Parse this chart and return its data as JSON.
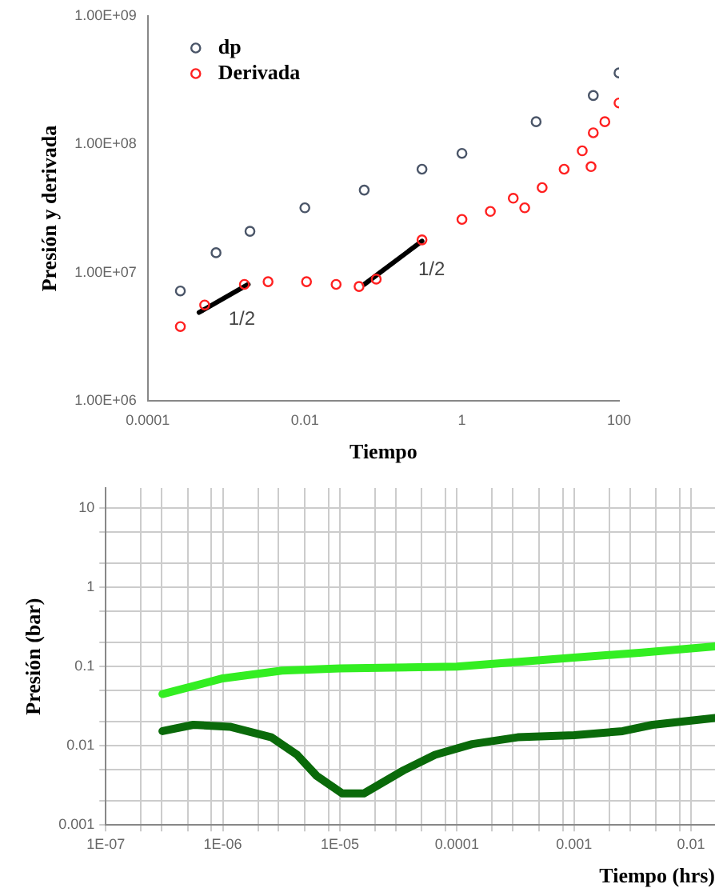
{
  "chart_data": [
    {
      "type": "scatter",
      "xlabel": "Tiempo",
      "ylabel": "Presión y derivada",
      "log": "xy",
      "grid": false,
      "legend": "top left",
      "xlim": [
        0.0001,
        100
      ],
      "xticks": [
        0.0001,
        0.01,
        1,
        100
      ],
      "ylim": [
        1000000,
        1000000000
      ],
      "yticks": [
        {
          "value": 1000000,
          "label": "1.00E+06"
        },
        {
          "value": 10000000,
          "label": "1.00E+07"
        },
        {
          "value": 100000000,
          "label": "1.00E+08"
        },
        {
          "value": 1000000000,
          "label": "1.00E+09"
        }
      ],
      "series": [
        {
          "name": "dp",
          "color": "#4a5568",
          "marker": "circle",
          "x": [
            0.00026,
            0.00074,
            0.002,
            0.01,
            0.057,
            0.31,
            1,
            8.8,
            47,
            100
          ],
          "values": [
            7200000,
            14300000,
            21000000,
            32000000,
            44000000,
            64000000,
            85000000,
            150000000,
            240000000,
            360000000
          ]
        },
        {
          "name": "Derivada",
          "color": "#ff2020",
          "marker": "circle",
          "x": [
            0.00026,
            0.00053,
            0.0017,
            0.0034,
            0.0105,
            0.025,
            0.049,
            0.081,
            0.31,
            1,
            2.3,
            4.5,
            6.3,
            10.5,
            20,
            34,
            44,
            47,
            66,
            100
          ],
          "values": [
            3800000,
            5600000,
            8100000,
            8500000,
            8500000,
            8100000,
            7800000,
            8900000,
            18000000,
            26000000,
            30000000,
            38000000,
            32000000,
            46000000,
            64000000,
            89000000,
            67000000,
            123000000,
            150000000,
            210000000
          ]
        },
        {
          "type": "line",
          "color": "#000000",
          "marker": "none",
          "x": [
            0.00045,
            0.0019
          ],
          "values": [
            4900000,
            8100000
          ]
        },
        {
          "type": "line",
          "color": "#000000",
          "marker": "none",
          "x": [
            0.057,
            0.31
          ],
          "values": [
            8100000,
            17600000
          ]
        }
      ],
      "annotations": [
        "1/2",
        "1/2"
      ]
    },
    {
      "type": "line",
      "xlabel": "Tiempo (hrs)",
      "ylabel": "Presión (bar)",
      "log": "xy",
      "grid": true,
      "xlim": [
        1e-07,
        0.016
      ],
      "xticks": [
        {
          "value": 1e-07,
          "label": "1E-07"
        },
        {
          "value": 2e-07,
          "label": null
        },
        {
          "value": 3e-07,
          "label": null
        },
        {
          "value": 5e-07,
          "label": null
        },
        {
          "value": 8e-07,
          "label": null
        },
        {
          "value": 1e-06,
          "label": "1E-06"
        },
        {
          "value": 2e-06,
          "label": null
        },
        {
          "value": 3e-06,
          "label": null
        },
        {
          "value": 5e-06,
          "label": null
        },
        {
          "value": 8e-06,
          "label": null
        },
        {
          "value": 1e-05,
          "label": "1E-05"
        },
        {
          "value": 2e-05,
          "label": null
        },
        {
          "value": 3e-05,
          "label": null
        },
        {
          "value": 5e-05,
          "label": null
        },
        {
          "value": 8e-05,
          "label": null
        },
        {
          "value": 0.0001,
          "label": "0.0001"
        },
        {
          "value": 0.0002,
          "label": null
        },
        {
          "value": 0.0003,
          "label": null
        },
        {
          "value": 0.0005,
          "label": null
        },
        {
          "value": 0.0008,
          "label": null
        },
        {
          "value": 0.001,
          "label": "0.001"
        },
        {
          "value": 0.002,
          "label": null
        },
        {
          "value": 0.003,
          "label": null
        },
        {
          "value": 0.005,
          "label": null
        },
        {
          "value": 0.008,
          "label": null
        },
        {
          "value": 0.01,
          "label": "0.01"
        }
      ],
      "ylim": [
        0.001,
        18
      ],
      "yticks": [
        {
          "value": 0.001,
          "label": "0.001"
        },
        {
          "value": 0.002,
          "label": null
        },
        {
          "value": 0.005,
          "label": null
        },
        {
          "value": 0.01,
          "label": "0.01"
        },
        {
          "value": 0.02,
          "label": null
        },
        {
          "value": 0.05,
          "label": null
        },
        {
          "value": 0.1,
          "label": "0.1"
        },
        {
          "value": 0.2,
          "label": null
        },
        {
          "value": 0.5,
          "label": null
        },
        {
          "value": 1,
          "label": "1"
        },
        {
          "value": 2,
          "label": null
        },
        {
          "value": 5,
          "label": null
        },
        {
          "value": 10,
          "label": "10"
        }
      ],
      "series": [
        {
          "color": "#33ee22",
          "x": [
            3.05e-07,
            1e-06,
            3.2e-06,
            1e-05,
            0.0001,
            0.001,
            0.0038,
            0.016
          ],
          "values": [
            0.045,
            0.071,
            0.089,
            0.095,
            0.1,
            0.13,
            0.15,
            0.18
          ]
        },
        {
          "color": "#0a6a0a",
          "x": [
            3.05e-07,
            5.6e-07,
            1.15e-06,
            2.6e-06,
            4.3e-06,
            6.3e-06,
            1.05e-05,
            1.6e-05,
            3.5e-05,
            6.5e-05,
            0.000135,
            0.00033,
            0.001,
            0.0026,
            0.0047,
            0.016
          ],
          "values": [
            0.0153,
            0.0184,
            0.0174,
            0.0128,
            0.0077,
            0.0042,
            0.0025,
            0.0025,
            0.0049,
            0.0077,
            0.0105,
            0.0128,
            0.0136,
            0.0153,
            0.0184,
            0.0224
          ]
        }
      ]
    }
  ]
}
